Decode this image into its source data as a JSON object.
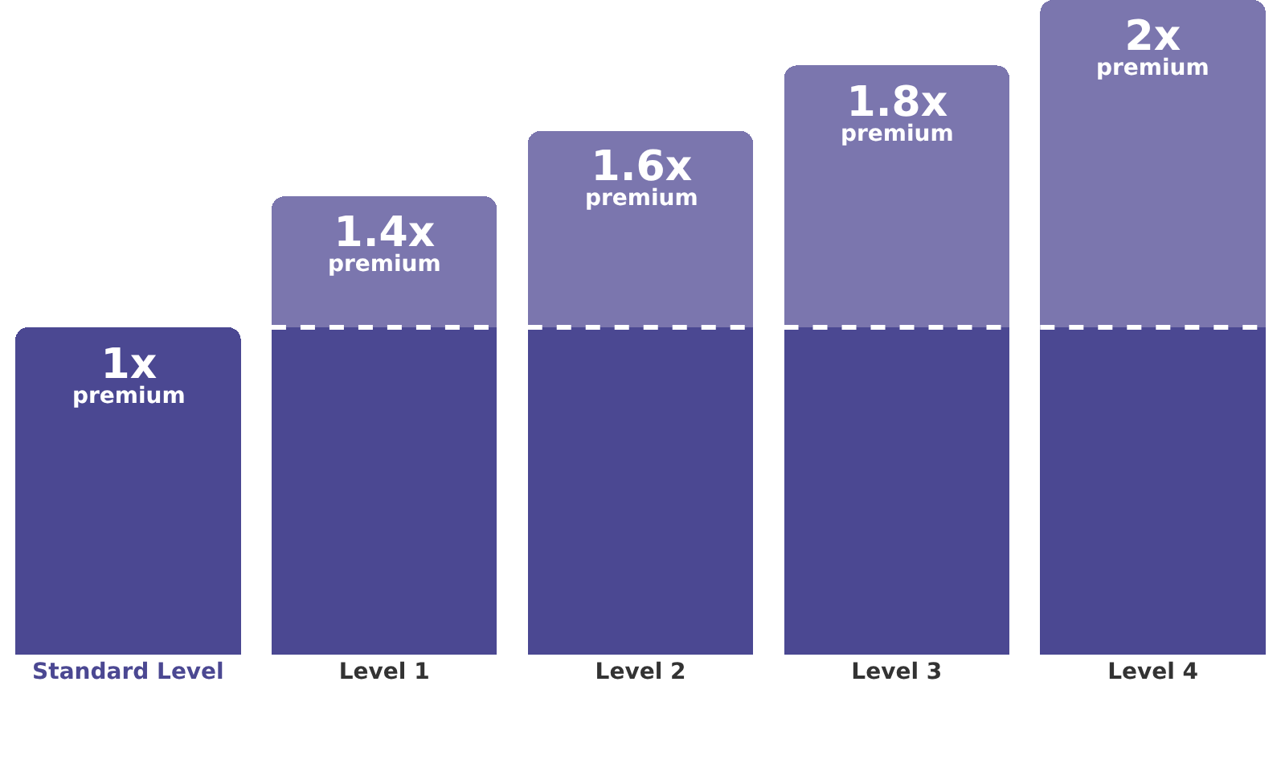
{
  "chart_data": {
    "type": "bar",
    "stacked": true,
    "categories": [
      "Standard Level",
      "Level 1",
      "Level 2",
      "Level 3",
      "Level 4"
    ],
    "series": [
      {
        "color": "#4b4892",
        "values": [
          1,
          1,
          1,
          1,
          1
        ],
        "value_labels": [
          "1x\npremium",
          null,
          null,
          null,
          null
        ]
      },
      {
        "color": "#7b76ae",
        "values": [
          null,
          0.4,
          0.6,
          0.8,
          1.0
        ]
      }
    ],
    "totals": [
      null,
      "1.4x\npremium",
      "1.6x\npremium",
      "1.8x\npremium",
      "2x\npremium"
    ],
    "line_style": "dashed"
  }
}
